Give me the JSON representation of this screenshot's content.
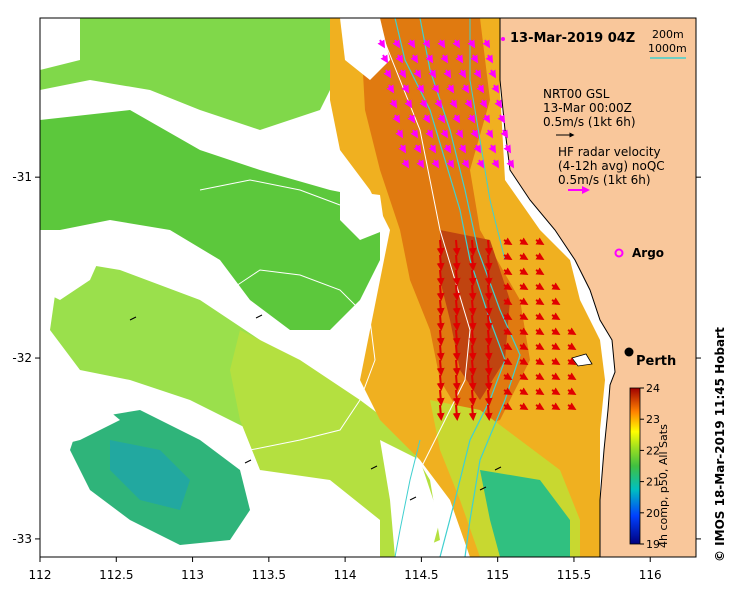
{
  "map": {
    "title": "13-Mar-2019 04Z",
    "credit": "© IMOS 18-Mar-2019 11:45 Hobart",
    "depth_legend": [
      "200m",
      "1000m"
    ],
    "gsl_legend": [
      "NRT00 GSL",
      "13-Mar 00:00Z",
      "0.5m/s (1kt 6h)"
    ],
    "hf_legend": [
      "HF radar velocity",
      "(4-12h avg) noQC",
      "0.5m/s (1kt 6h)"
    ],
    "places": [
      {
        "name": "Argo",
        "lon": 115.78,
        "lat": -31.41
      },
      {
        "name": "Perth",
        "lon": 115.86,
        "lat": -31.95
      }
    ],
    "colorbar": {
      "label": "4h comp, p50, All Sats",
      "ticks": [
        "24",
        "23",
        "22",
        "21",
        "20",
        "19"
      ],
      "min": 19,
      "max": 24
    },
    "x_ticks": [
      "112",
      "112.5",
      "113",
      "113.5",
      "114",
      "114.5",
      "115",
      "115.5",
      "116"
    ],
    "y_ticks": [
      "-31",
      "-32",
      "-33"
    ],
    "lon_range": [
      112,
      116.3
    ],
    "lat_range": [
      -33.1,
      -30.12
    ],
    "colors": {
      "land": "#f9c79b",
      "ocean_missing": "#ffffff",
      "gsl_arrow": "#000000",
      "hf_arrow": "#ff00ff",
      "isobath": "#40d0d0",
      "coastline": "#000000"
    }
  }
}
